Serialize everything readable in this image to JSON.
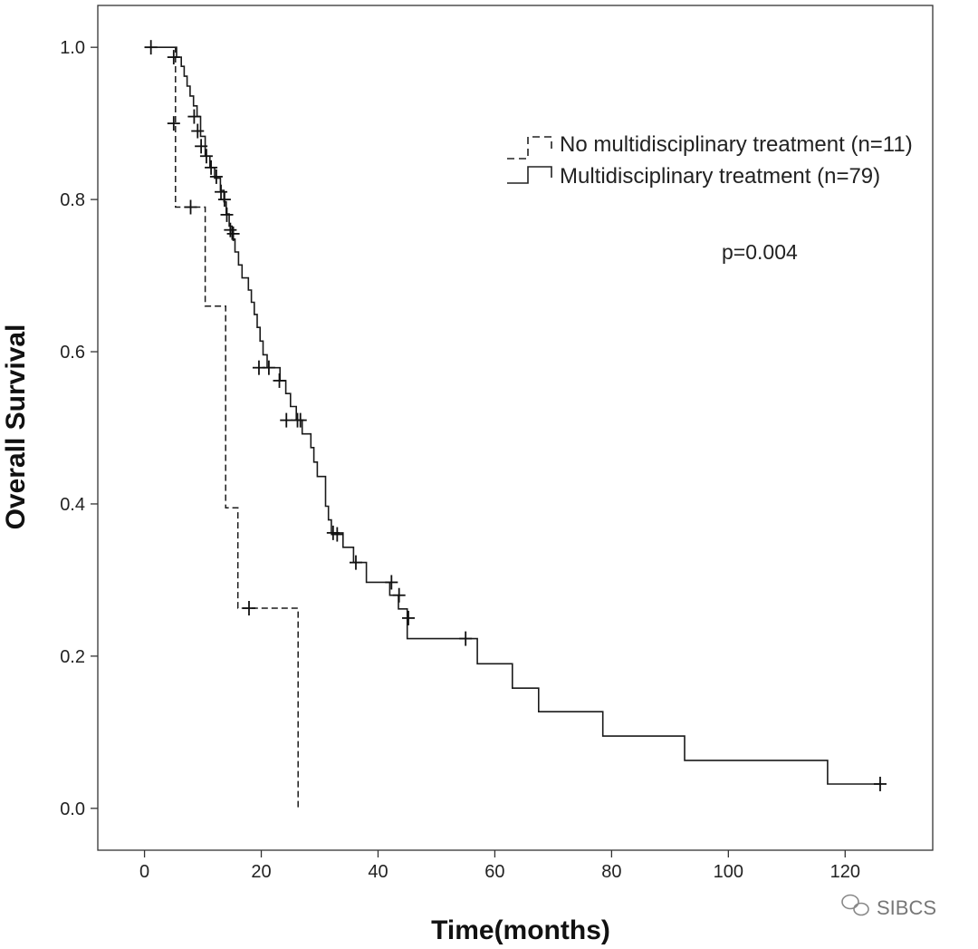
{
  "chart_data": {
    "type": "line",
    "subtype": "kaplan-meier step",
    "title": "",
    "xlabel": "Time(months)",
    "ylabel": "Overall Survival",
    "xlim": [
      -8,
      135
    ],
    "ylim": [
      -0.055,
      1.055
    ],
    "xticks": [
      0,
      20,
      40,
      60,
      80,
      100,
      120
    ],
    "yticks": [
      0.0,
      0.2,
      0.4,
      0.6,
      0.8,
      1.0
    ],
    "xtick_labels": [
      "0",
      "20",
      "40",
      "60",
      "80",
      "100",
      "120"
    ],
    "ytick_labels": [
      "0.0",
      "0.2",
      "0.4",
      "0.6",
      "0.8",
      "1.0"
    ],
    "legend_position": "top-right",
    "series": [
      {
        "name": "No multidisciplinary treatment (n=11)",
        "style": "dashed",
        "steps": [
          [
            0,
            1.0
          ],
          [
            5.3,
            0.79
          ],
          [
            10.4,
            0.66
          ],
          [
            13.9,
            0.395
          ],
          [
            16.0,
            0.263
          ],
          [
            26.3,
            0.0
          ]
        ],
        "end_x": 26.3,
        "censors": [
          [
            1.1,
            1.0
          ],
          [
            5.0,
            0.9
          ],
          [
            7.9,
            0.79
          ],
          [
            17.9,
            0.263
          ]
        ]
      },
      {
        "name": "Multidisciplinary treatment (n=79)",
        "style": "solid",
        "steps": [
          [
            0,
            1.0
          ],
          [
            5.5,
            0.987
          ],
          [
            6.3,
            0.975
          ],
          [
            6.8,
            0.962
          ],
          [
            7.3,
            0.949
          ],
          [
            7.8,
            0.936
          ],
          [
            8.4,
            0.923
          ],
          [
            9.0,
            0.909
          ],
          [
            9.6,
            0.883
          ],
          [
            10.4,
            0.857
          ],
          [
            11.2,
            0.842
          ],
          [
            12.0,
            0.828
          ],
          [
            13.0,
            0.812
          ],
          [
            13.6,
            0.797
          ],
          [
            14.0,
            0.781
          ],
          [
            14.5,
            0.765
          ],
          [
            15.0,
            0.748
          ],
          [
            15.5,
            0.731
          ],
          [
            16.1,
            0.714
          ],
          [
            16.7,
            0.697
          ],
          [
            17.8,
            0.681
          ],
          [
            18.3,
            0.665
          ],
          [
            18.8,
            0.649
          ],
          [
            19.3,
            0.632
          ],
          [
            19.8,
            0.614
          ],
          [
            20.3,
            0.596
          ],
          [
            21.0,
            0.579
          ],
          [
            23.2,
            0.562
          ],
          [
            24.2,
            0.545
          ],
          [
            25.0,
            0.528
          ],
          [
            26.0,
            0.51
          ],
          [
            27.0,
            0.492
          ],
          [
            28.5,
            0.474
          ],
          [
            29.0,
            0.455
          ],
          [
            29.6,
            0.436
          ],
          [
            31.0,
            0.397
          ],
          [
            31.5,
            0.379
          ],
          [
            32.0,
            0.362
          ],
          [
            34.0,
            0.343
          ],
          [
            35.8,
            0.323
          ],
          [
            38.0,
            0.297
          ],
          [
            42.0,
            0.28
          ],
          [
            43.5,
            0.262
          ],
          [
            45.0,
            0.223
          ],
          [
            57.0,
            0.19
          ],
          [
            63.0,
            0.158
          ],
          [
            67.5,
            0.127
          ],
          [
            78.5,
            0.095
          ],
          [
            92.5,
            0.063
          ],
          [
            117.0,
            0.032
          ]
        ],
        "end_x": 126.0,
        "censors": [
          [
            5.0,
            0.987
          ],
          [
            8.5,
            0.909
          ],
          [
            9.1,
            0.89
          ],
          [
            9.7,
            0.87
          ],
          [
            10.6,
            0.857
          ],
          [
            11.4,
            0.842
          ],
          [
            12.3,
            0.83
          ],
          [
            13.1,
            0.81
          ],
          [
            13.7,
            0.8
          ],
          [
            14.1,
            0.78
          ],
          [
            14.7,
            0.76
          ],
          [
            15.2,
            0.755
          ],
          [
            19.6,
            0.579
          ],
          [
            21.3,
            0.579
          ],
          [
            23.1,
            0.562
          ],
          [
            24.3,
            0.51
          ],
          [
            26.2,
            0.51
          ],
          [
            26.7,
            0.51
          ],
          [
            32.3,
            0.362
          ],
          [
            33.0,
            0.36
          ],
          [
            36.2,
            0.323
          ],
          [
            42.3,
            0.297
          ],
          [
            43.6,
            0.28
          ],
          [
            45.2,
            0.25
          ],
          [
            55.0,
            0.223
          ],
          [
            126.0,
            0.032
          ]
        ]
      }
    ],
    "annotations": [
      "p=0.004"
    ],
    "watermark": "SIBCS"
  }
}
